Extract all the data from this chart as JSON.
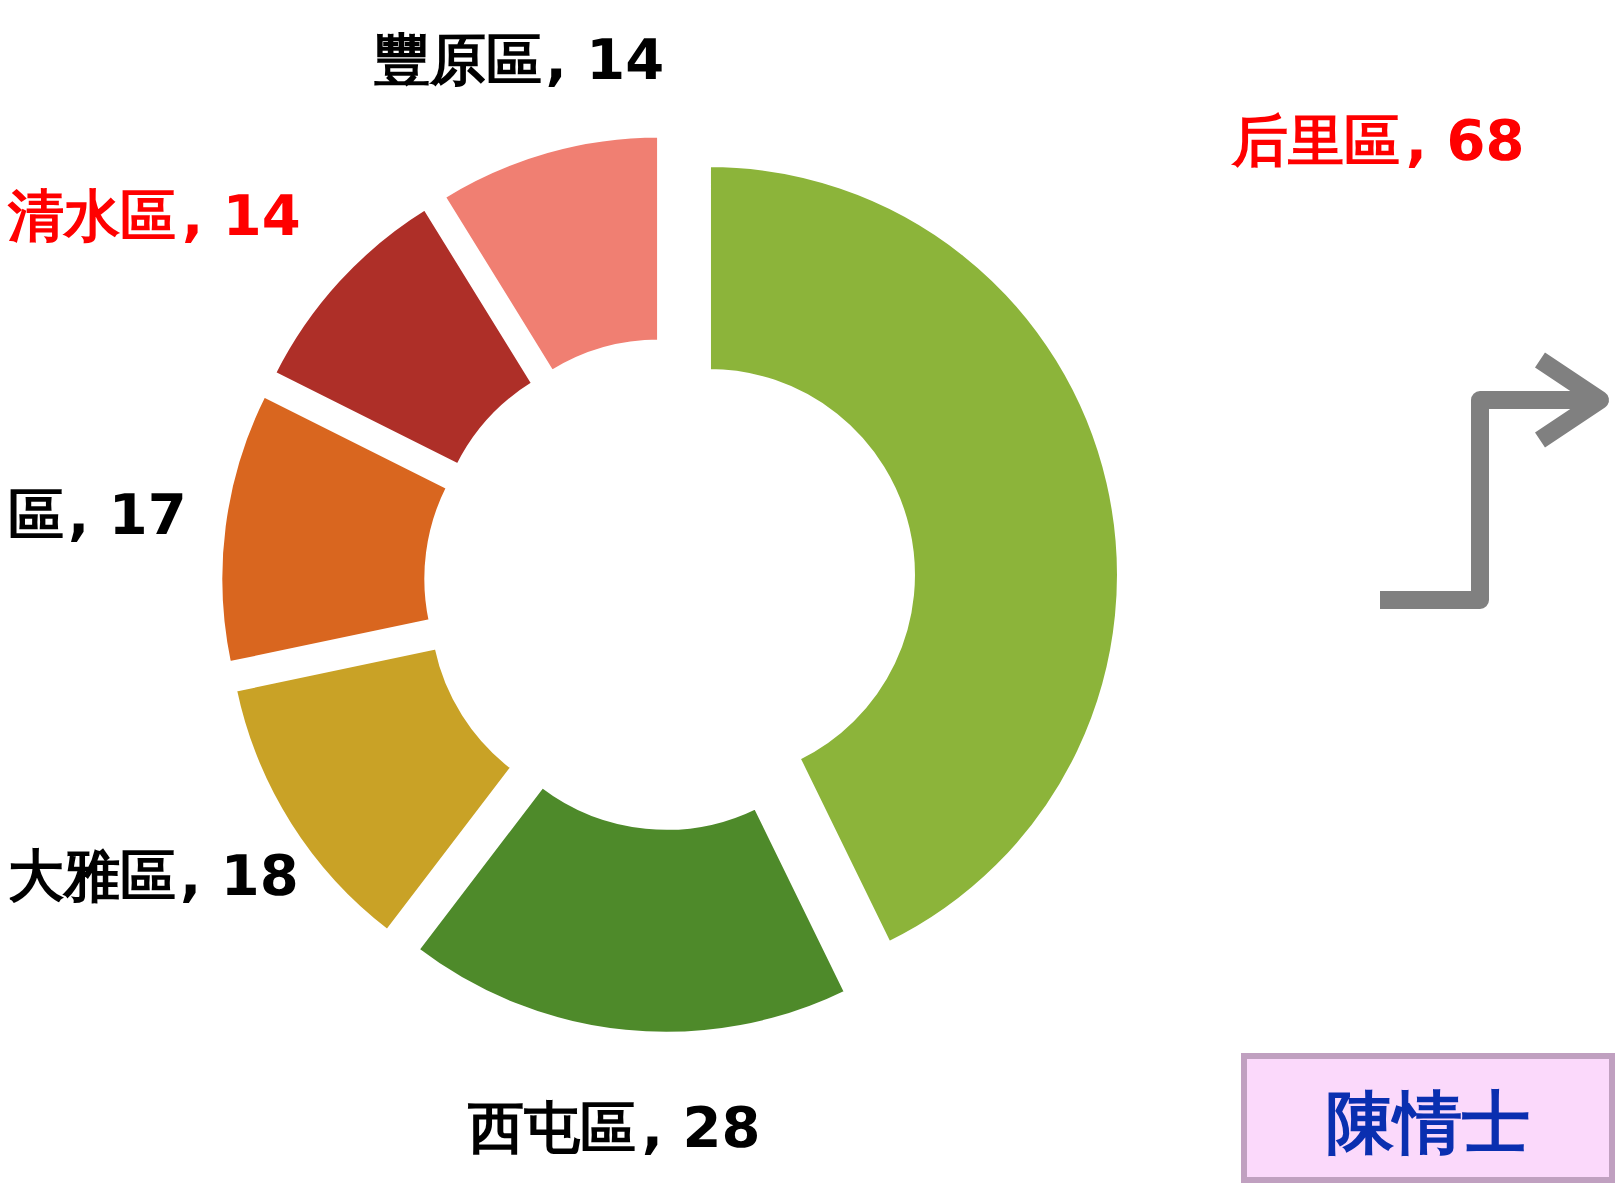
{
  "chart_data": {
    "type": "donut",
    "categories": [
      "后里區",
      "西屯區",
      "大雅區",
      "區",
      "清水區",
      "豐原區"
    ],
    "values": [
      68,
      28,
      18,
      17,
      14,
      14
    ],
    "value_labels": [
      ", 68",
      ", 28",
      ", 18",
      ", 17",
      ", 14",
      ", 14"
    ],
    "colors": [
      "#8cb43a",
      "#4e8a2a",
      "#c9a226",
      "#d9661f",
      "#ae2f28",
      "#f07f72"
    ],
    "annotations": [
      "陳情士"
    ]
  }
}
